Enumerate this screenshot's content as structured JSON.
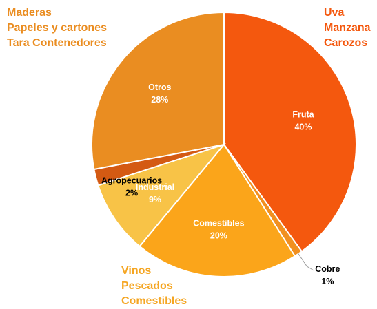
{
  "chart_data": {
    "type": "pie",
    "slices": [
      {
        "label": "Fruta",
        "value": 40,
        "pct": "40%",
        "color": "#F4580E",
        "label_color": "#ffffff",
        "label_pos": "inside"
      },
      {
        "label": "Cobre",
        "value": 1,
        "pct": "1%",
        "color": "#F1901F",
        "label_color": "#000000",
        "label_pos": "outside"
      },
      {
        "label": "Comestibles",
        "value": 20,
        "pct": "20%",
        "color": "#FBA51A",
        "label_color": "#ffffff",
        "label_pos": "inside"
      },
      {
        "label": "Industrial",
        "value": 9,
        "pct": "9%",
        "color": "#F8C347",
        "label_color": "#ffffff",
        "label_pos": "inside"
      },
      {
        "label": "Agropecuarios",
        "value": 2,
        "pct": "2%",
        "color": "#D45A13",
        "label_color": "#000000",
        "label_pos": "inside"
      },
      {
        "label": "Otros",
        "value": 28,
        "pct": "28%",
        "color": "#EA8D21",
        "label_color": "#ffffff",
        "label_pos": "inside"
      }
    ]
  },
  "annotations": {
    "top_left": {
      "lines": [
        "Maderas",
        "Papeles y cartones",
        "Tara Contenedores"
      ],
      "color": "#EA8D21"
    },
    "top_right": {
      "lines": [
        "Uva",
        "Manzana",
        "Carozos"
      ],
      "color": "#F4580E"
    },
    "bottom_left": {
      "lines": [
        "Vinos",
        "Pescados",
        "Comestibles"
      ],
      "color": "#F5A623"
    }
  }
}
